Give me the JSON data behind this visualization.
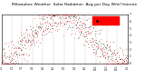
{
  "title": "Milwaukee Weather  Solar Radiation",
  "subtitle": "Avg per Day W/m²/minute",
  "title_fontsize": 3.2,
  "background_color": "#ffffff",
  "plot_bg": "#ffffff",
  "ylim": [
    0,
    7
  ],
  "xlim": [
    0,
    365
  ],
  "dot_color_red": "#ff0000",
  "dot_color_black": "#000000",
  "grid_color": "#bbbbbb",
  "legend_bg": "#ff0000",
  "seed": 42,
  "month_tick_positions": [
    0,
    31,
    59,
    90,
    120,
    151,
    181,
    212,
    243,
    273,
    304,
    334,
    365
  ],
  "month_labels": [
    "1/1",
    "2/1",
    "3/1",
    "4/1",
    "5/1",
    "6/1",
    "7/1",
    "8/1",
    "9/1",
    "10/1",
    "11/1",
    "12/1",
    "1/1"
  ],
  "yticks": [
    0,
    1,
    2,
    3,
    4,
    5,
    6,
    7
  ],
  "ytick_labels": [
    "0",
    "1",
    "2",
    "3",
    "4",
    "5",
    "6",
    "7"
  ]
}
